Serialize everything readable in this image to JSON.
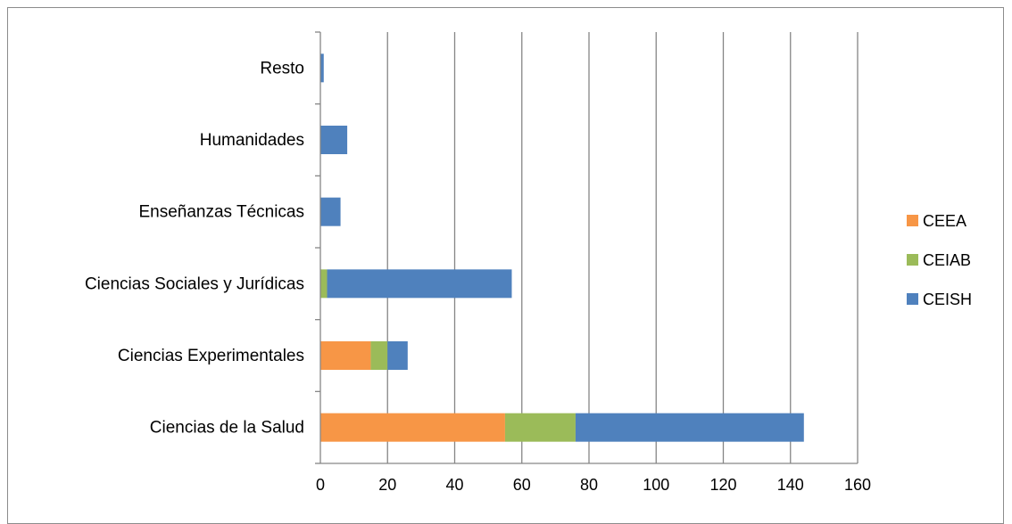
{
  "chart_data": {
    "type": "bar",
    "orientation": "horizontal",
    "stacked": true,
    "categories": [
      "Ciencias de la Salud",
      "Ciencias Experimentales",
      "Ciencias Sociales y Jurídicas",
      "Enseñanzas Técnicas",
      "Humanidades",
      "Resto"
    ],
    "series": [
      {
        "name": "CEEA",
        "color": "#F79646",
        "values": [
          55,
          15,
          0,
          0,
          0,
          0
        ]
      },
      {
        "name": "CEIAB",
        "color": "#9BBB59",
        "values": [
          21,
          5,
          2,
          0,
          0,
          0
        ]
      },
      {
        "name": "CEISH",
        "color": "#4F81BD",
        "values": [
          68,
          6,
          55,
          6,
          8,
          1
        ]
      }
    ],
    "xlim": [
      0,
      160
    ],
    "xticks": [
      "0",
      "20",
      "40",
      "60",
      "80",
      "100",
      "120",
      "140",
      "160"
    ],
    "title": "",
    "xlabel": "",
    "ylabel": "",
    "grid": "vertical",
    "legend_position": "right",
    "gridline_color": "#868686"
  }
}
